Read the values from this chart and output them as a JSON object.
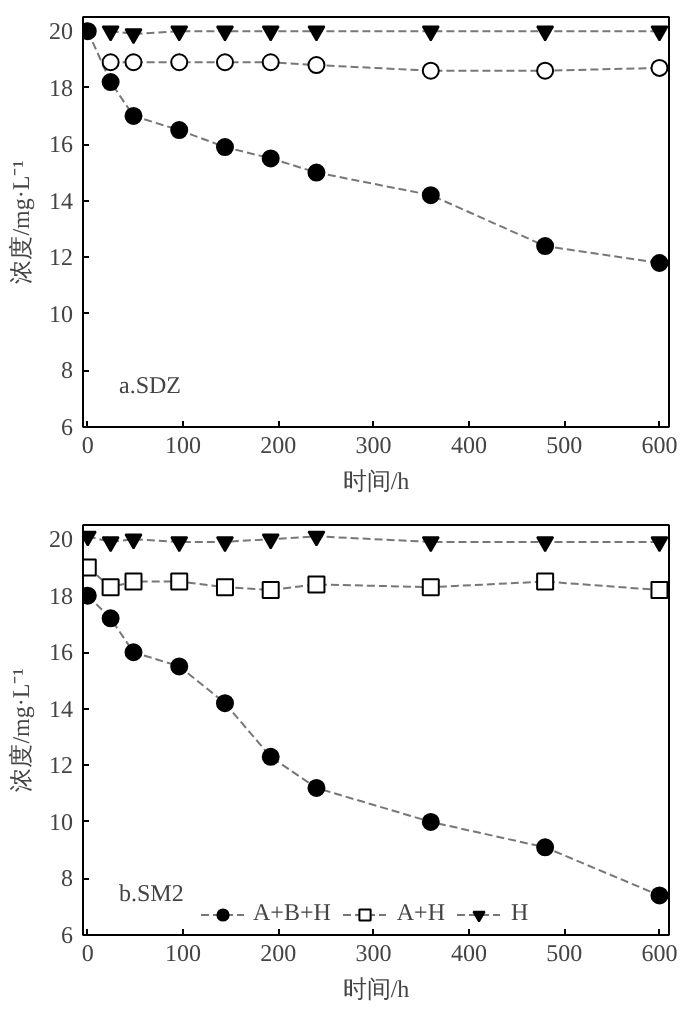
{
  "chart_data": [
    {
      "type": "line",
      "xlabel": "时间/h",
      "ylabel": "浓度/mg·L⁻¹",
      "annotations": [
        "a.SDZ"
      ],
      "xlim": [
        -5,
        610
      ],
      "ylim": [
        6,
        20.5
      ],
      "xticks": [
        0,
        100,
        200,
        300,
        400,
        500,
        600
      ],
      "yticks": [
        6,
        8,
        10,
        12,
        14,
        16,
        18,
        20
      ],
      "grid": false,
      "line_style": "dashed",
      "series": [
        {
          "color": "#000000",
          "marker": "circle",
          "x": [
            0,
            24,
            48,
            96,
            144,
            192,
            240,
            360,
            480,
            600
          ],
          "values": [
            20,
            18.2,
            17.0,
            16.5,
            15.9,
            15.5,
            15.0,
            14.2,
            12.4,
            11.8
          ]
        },
        {
          "color": "#ffffff",
          "marker": "circle",
          "x": [
            24,
            48,
            96,
            144,
            192,
            240,
            360,
            480,
            600
          ],
          "values": [
            18.9,
            18.9,
            18.9,
            18.9,
            18.9,
            18.8,
            18.6,
            18.6,
            18.7
          ]
        },
        {
          "color": "#000000",
          "marker": "triangle",
          "x": [
            24,
            48,
            96,
            144,
            192,
            240,
            360,
            480,
            600
          ],
          "values": [
            20,
            19.9,
            20,
            20,
            20,
            20,
            20,
            20,
            20
          ]
        }
      ]
    },
    {
      "type": "line",
      "xlabel": "时间/h",
      "ylabel": "浓度/mg·L⁻¹",
      "annotations": [
        "b.SM2"
      ],
      "xlim": [
        -5,
        610
      ],
      "ylim": [
        6,
        20.5
      ],
      "xticks": [
        0,
        100,
        200,
        300,
        400,
        500,
        600
      ],
      "yticks": [
        6,
        8,
        10,
        12,
        14,
        16,
        18,
        20
      ],
      "grid": false,
      "legend": "bottom",
      "line_style": "dashed",
      "x": [
        0,
        24,
        48,
        96,
        144,
        192,
        240,
        360,
        480,
        600
      ],
      "series": [
        {
          "name": "A+B+H",
          "color": "#000000",
          "marker": "circle",
          "values": [
            18.0,
            17.2,
            16.0,
            15.5,
            14.2,
            12.3,
            11.2,
            10.0,
            9.1,
            7.4
          ]
        },
        {
          "name": "A+H",
          "color": "#ffffff",
          "marker": "square",
          "values": [
            19.0,
            18.3,
            18.5,
            18.5,
            18.3,
            18.2,
            18.4,
            18.3,
            18.5,
            18.2
          ]
        },
        {
          "name": "H",
          "color": "#000000",
          "marker": "triangle",
          "values": [
            20.1,
            19.9,
            20.0,
            19.9,
            19.9,
            20.0,
            20.1,
            19.9,
            19.9,
            19.9
          ]
        }
      ]
    }
  ]
}
